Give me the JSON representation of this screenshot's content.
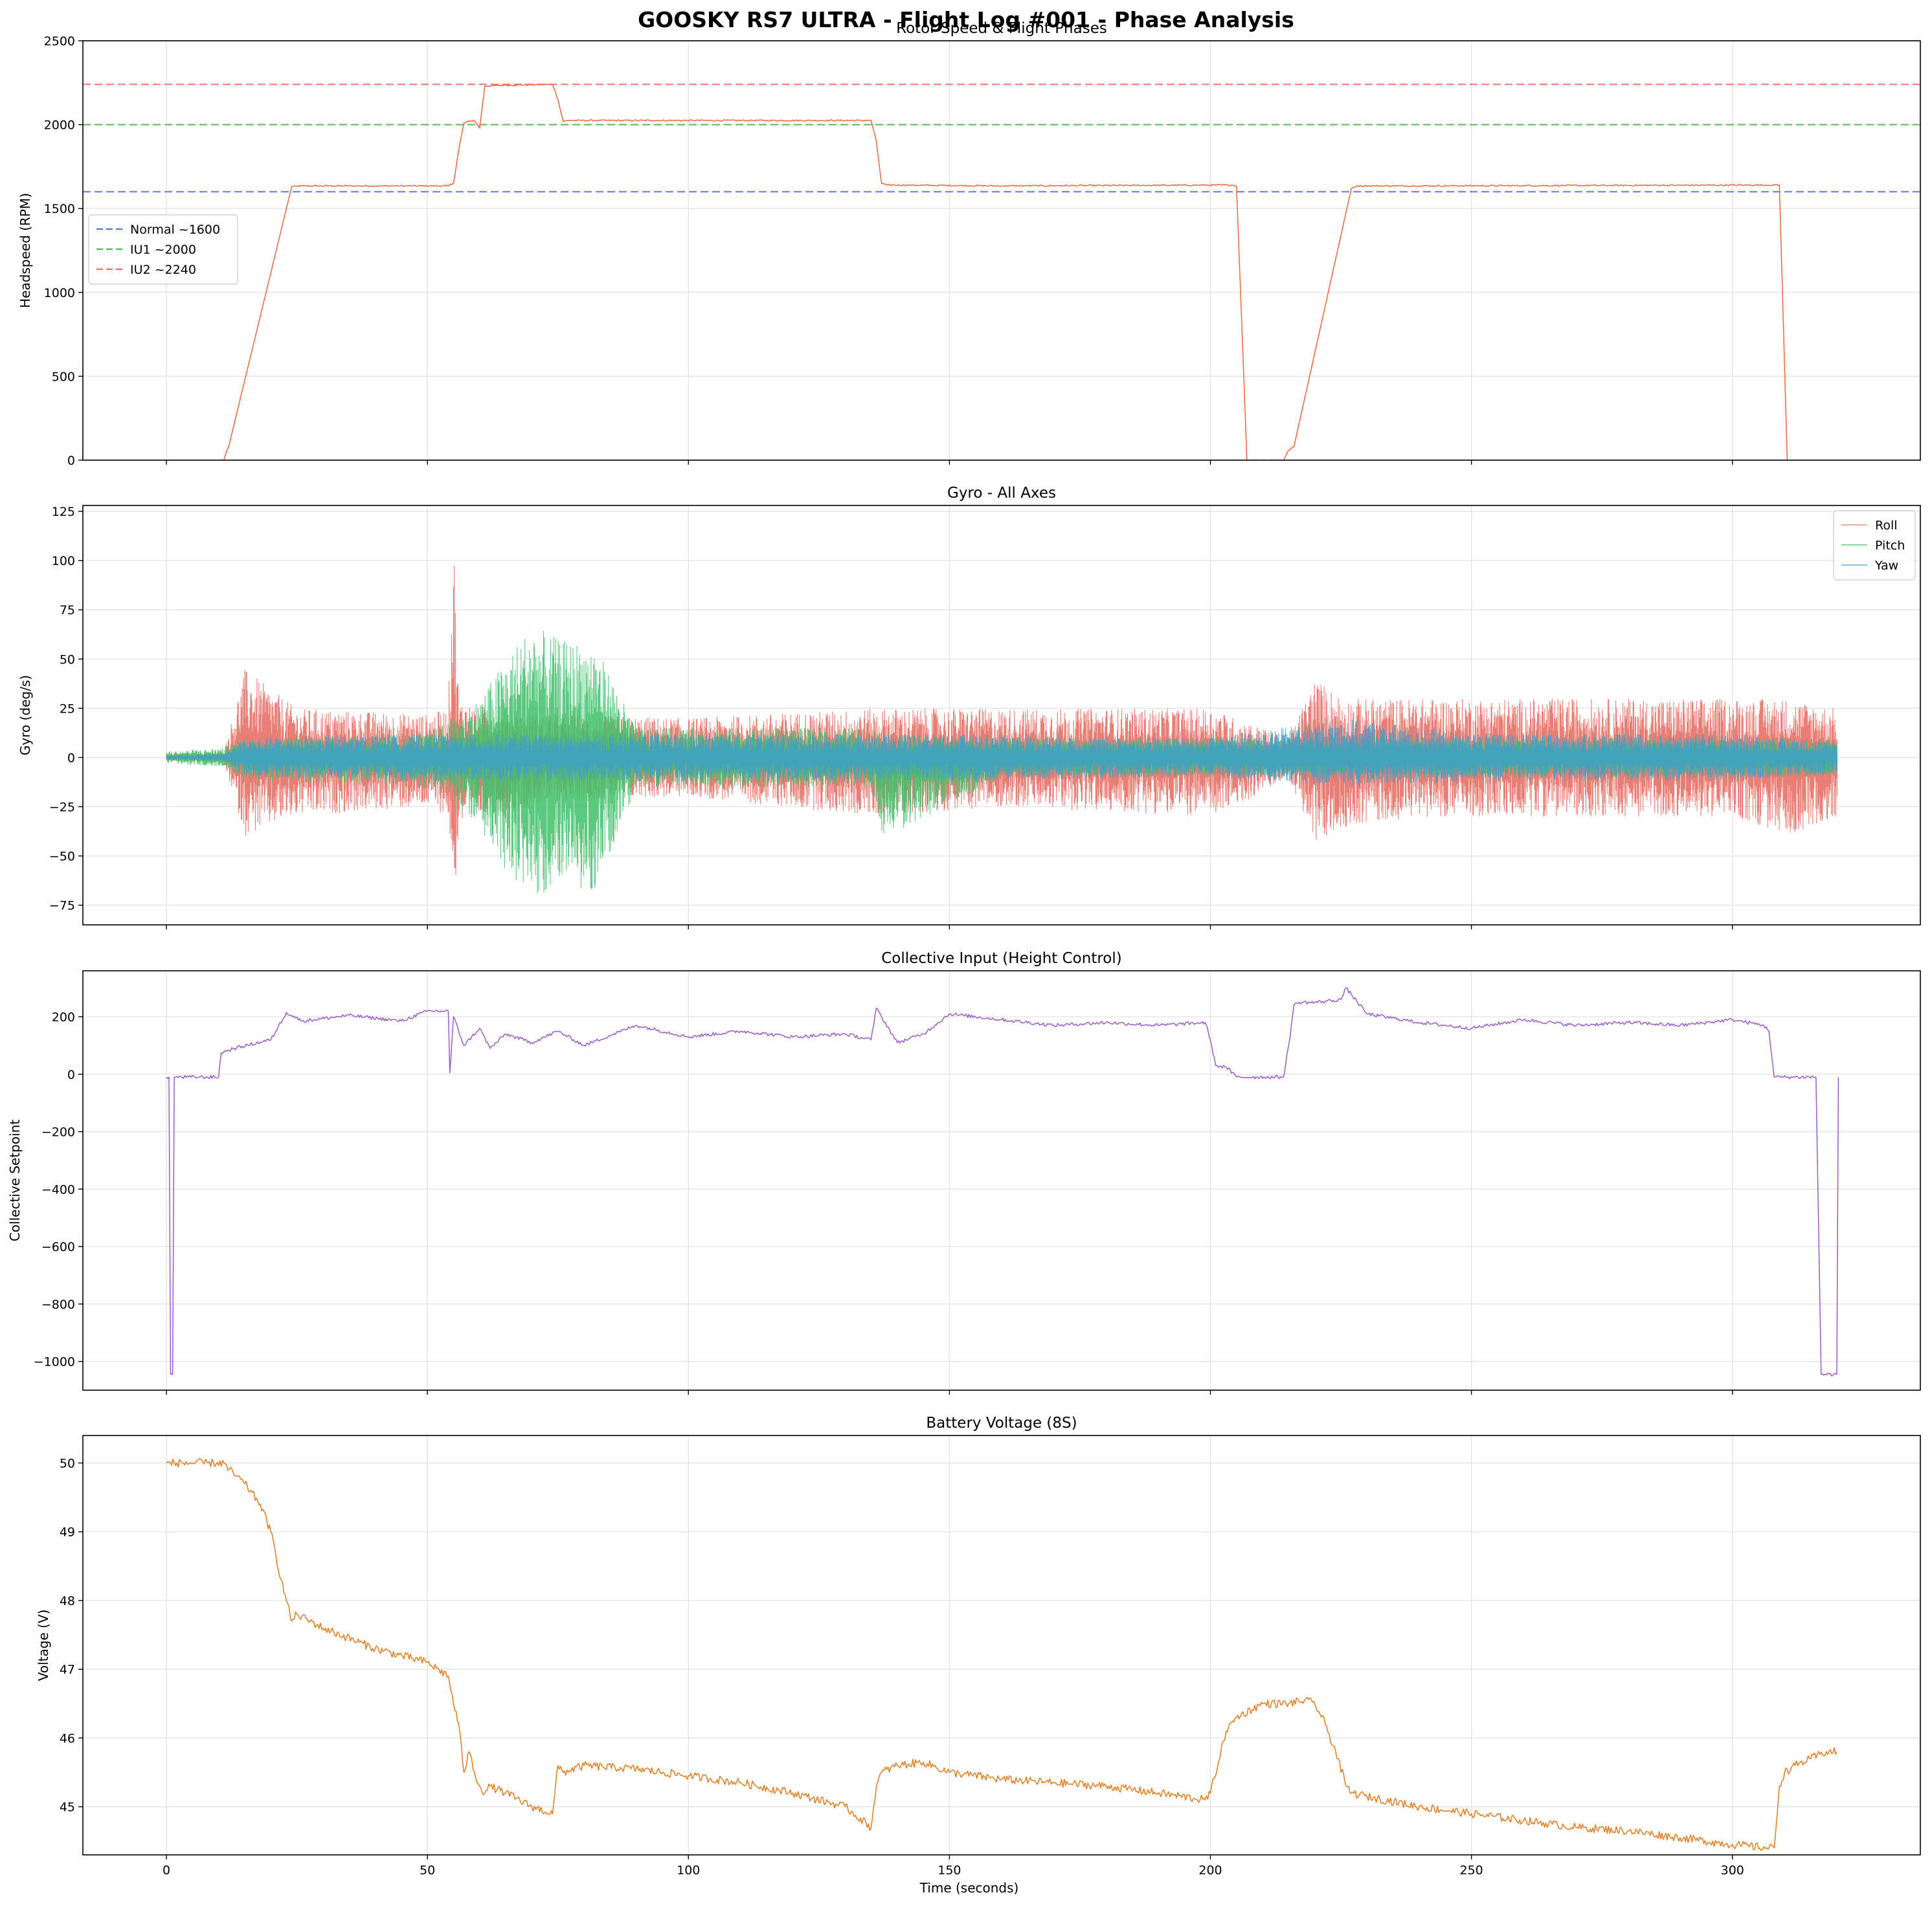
{
  "figure": {
    "title": "GOOSKY RS7 ULTRA - Flight Log #001 - Phase Analysis",
    "xlabel": "Time (seconds)"
  },
  "chart_data": [
    {
      "type": "line",
      "title": "Rotor Speed & Flight Phases",
      "xlabel": "",
      "ylabel": "Headspeed (RPM)",
      "xlim": [
        -16,
        336
      ],
      "ylim": [
        0,
        2500
      ],
      "xticks": [
        0,
        50,
        100,
        150,
        200,
        250,
        300
      ],
      "yticks": [
        0,
        500,
        1000,
        1500,
        2000,
        2500
      ],
      "grid": true,
      "legend": {
        "position": "center-left",
        "entries": [
          "Normal ~1600",
          "IU1 ~2000",
          "IU2 ~2240"
        ]
      },
      "reference_lines": [
        {
          "name": "Normal ~1600",
          "y": 1600,
          "color": "#5a6ee8",
          "style": "dashed"
        },
        {
          "name": "IU1 ~2000",
          "y": 2000,
          "color": "#4cbb4c",
          "style": "dashed"
        },
        {
          "name": "IU2 ~2240",
          "y": 2240,
          "color": "#f06a6a",
          "style": "dashed"
        }
      ],
      "series": [
        {
          "name": "",
          "color": "#f0643c",
          "x": [
            11,
            11.5,
            12,
            24,
            26,
            54,
            55,
            56,
            57,
            58,
            59,
            60,
            61,
            65,
            74,
            75,
            76,
            77,
            80,
            135,
            136,
            137,
            138,
            160,
            204,
            205,
            207,
            208,
            214,
            215,
            216,
            227,
            228,
            240,
            308,
            309,
            310.5
          ],
          "y": [
            0,
            50,
            90,
            1630,
            1635,
            1635,
            1650,
            1850,
            2010,
            2020,
            2025,
            1980,
            2230,
            2235,
            2240,
            2150,
            2020,
            2025,
            2025,
            2025,
            1900,
            1650,
            1640,
            1635,
            1640,
            1635,
            0,
            0,
            0,
            60,
            80,
            1620,
            1635,
            1635,
            1640,
            1640,
            0
          ]
        }
      ]
    },
    {
      "type": "line",
      "title": "Gyro - All Axes",
      "xlabel": "",
      "ylabel": "Gyro (deg/s)",
      "xlim": [
        -16,
        336
      ],
      "ylim": [
        -85,
        128
      ],
      "xticks": [
        0,
        50,
        100,
        150,
        200,
        250,
        300
      ],
      "yticks": [
        -75,
        -50,
        -25,
        0,
        25,
        50,
        75,
        100,
        125
      ],
      "grid": true,
      "legend": {
        "position": "top-right",
        "entries": [
          "Roll",
          "Pitch",
          "Yaw"
        ]
      },
      "series": [
        {
          "name": "Roll",
          "color": "#e8776e",
          "x": [
            0,
            11,
            15,
            25,
            50,
            54,
            55,
            56,
            60,
            75,
            100,
            135,
            160,
            200,
            205,
            215,
            220,
            226,
            240,
            300,
            310,
            320
          ],
          "y_max": [
            2,
            3,
            45,
            25,
            22,
            25,
            118,
            30,
            25,
            22,
            20,
            25,
            25,
            25,
            20,
            10,
            40,
            30,
            30,
            30,
            30,
            25
          ],
          "y_min": [
            -2,
            -3,
            -40,
            -30,
            -25,
            -30,
            -78,
            -35,
            -30,
            -22,
            -20,
            -30,
            -25,
            -30,
            -25,
            -10,
            -45,
            -35,
            -30,
            -30,
            -40,
            -30
          ]
        },
        {
          "name": "Pitch",
          "color": "#3fbf6a",
          "x": [
            0,
            11,
            15,
            50,
            55,
            60,
            65,
            70,
            75,
            82,
            90,
            135,
            137,
            160,
            200,
            320
          ],
          "y_max": [
            3,
            5,
            10,
            12,
            20,
            30,
            50,
            68,
            60,
            58,
            15,
            15,
            12,
            10,
            10,
            10
          ],
          "y_min": [
            -3,
            -5,
            -12,
            -15,
            -25,
            -35,
            -60,
            -73,
            -65,
            -68,
            -15,
            -15,
            -42,
            -10,
            -10,
            -10
          ]
        },
        {
          "name": "Yaw",
          "color": "#3fa0c9",
          "x": [
            0,
            11,
            15,
            50,
            100,
            150,
            200,
            226,
            250,
            300,
            320
          ],
          "y_max": [
            1,
            2,
            10,
            12,
            12,
            12,
            10,
            20,
            12,
            12,
            8
          ],
          "y_min": [
            -1,
            -2,
            -10,
            -12,
            -12,
            -12,
            -10,
            -15,
            -12,
            -12,
            -8
          ]
        }
      ]
    },
    {
      "type": "line",
      "title": "Collective Input (Height Control)",
      "xlabel": "",
      "ylabel": "Collective Setpoint",
      "xlim": [
        -16,
        336
      ],
      "ylim": [
        -1100,
        360
      ],
      "xticks": [
        0,
        50,
        100,
        150,
        200,
        250,
        300
      ],
      "yticks": [
        -1000,
        -800,
        -600,
        -400,
        -200,
        0,
        200
      ],
      "grid": true,
      "series": [
        {
          "name": "",
          "color": "#9a5bc9",
          "x": [
            0,
            0.5,
            0.8,
            1.2,
            1.5,
            10,
            10.5,
            13,
            20,
            23,
            26,
            35,
            45,
            50,
            54,
            54.3,
            55,
            57,
            60,
            62,
            65,
            70,
            75,
            80,
            90,
            100,
            110,
            120,
            130,
            135,
            136,
            137,
            140,
            145,
            150,
            160,
            170,
            180,
            190,
            199,
            200,
            201,
            203,
            205,
            214,
            215,
            216,
            217,
            220,
            225,
            226,
            230,
            240,
            250,
            260,
            270,
            280,
            290,
            300,
            306,
            307,
            308,
            316,
            317,
            320,
            320.3
          ],
          "y": [
            -10,
            -10,
            -1045,
            -1045,
            -10,
            -10,
            75,
            90,
            120,
            215,
            185,
            205,
            185,
            220,
            220,
            5,
            200,
            100,
            160,
            90,
            140,
            110,
            150,
            100,
            170,
            130,
            150,
            130,
            140,
            120,
            230,
            200,
            110,
            140,
            210,
            190,
            170,
            180,
            170,
            180,
            120,
            30,
            25,
            -10,
            -10,
            100,
            240,
            250,
            250,
            260,
            300,
            210,
            180,
            160,
            190,
            170,
            180,
            170,
            190,
            170,
            150,
            -10,
            -10,
            -1045,
            -1045,
            -10
          ]
        }
      ]
    },
    {
      "type": "line",
      "title": "Battery Voltage (8S)",
      "xlabel": "Time (seconds)",
      "ylabel": "Voltage (V)",
      "xlim": [
        -16,
        336
      ],
      "ylim": [
        44.3,
        50.4
      ],
      "xticks": [
        0,
        50,
        100,
        150,
        200,
        250,
        300
      ],
      "yticks": [
        45,
        46,
        47,
        48,
        49,
        50
      ],
      "grid": true,
      "series": [
        {
          "name": "",
          "color": "#e37b1c",
          "x": [
            0,
            2,
            8,
            11,
            12,
            15,
            18,
            20,
            22,
            24,
            25,
            30,
            40,
            50,
            54,
            55,
            56,
            57,
            58,
            59,
            60,
            61,
            62,
            65,
            70,
            74,
            75,
            76,
            80,
            90,
            100,
            110,
            120,
            130,
            135,
            136,
            137,
            140,
            145,
            150,
            160,
            170,
            180,
            190,
            199,
            200,
            203,
            205,
            210,
            215,
            218,
            220,
            222,
            224,
            226,
            227,
            230,
            240,
            250,
            260,
            270,
            280,
            290,
            300,
            307,
            308,
            309,
            310,
            312,
            315,
            318,
            320
          ],
          "y": [
            50.0,
            50.0,
            50.0,
            50.0,
            49.9,
            49.7,
            49.4,
            49.0,
            48.3,
            47.7,
            47.8,
            47.6,
            47.3,
            47.1,
            46.9,
            46.5,
            46.2,
            45.5,
            45.8,
            45.5,
            45.3,
            45.2,
            45.3,
            45.2,
            45.0,
            44.9,
            45.6,
            45.5,
            45.6,
            45.55,
            45.45,
            45.35,
            45.2,
            45.0,
            44.7,
            45.3,
            45.5,
            45.6,
            45.65,
            45.5,
            45.4,
            45.35,
            45.3,
            45.2,
            45.1,
            45.2,
            46.1,
            46.3,
            46.5,
            46.5,
            46.55,
            46.5,
            46.2,
            45.8,
            45.3,
            45.2,
            45.15,
            45.0,
            44.9,
            44.8,
            44.7,
            44.65,
            44.55,
            44.45,
            44.4,
            44.4,
            45.3,
            45.5,
            45.6,
            45.7,
            45.8,
            45.8
          ]
        }
      ]
    }
  ]
}
